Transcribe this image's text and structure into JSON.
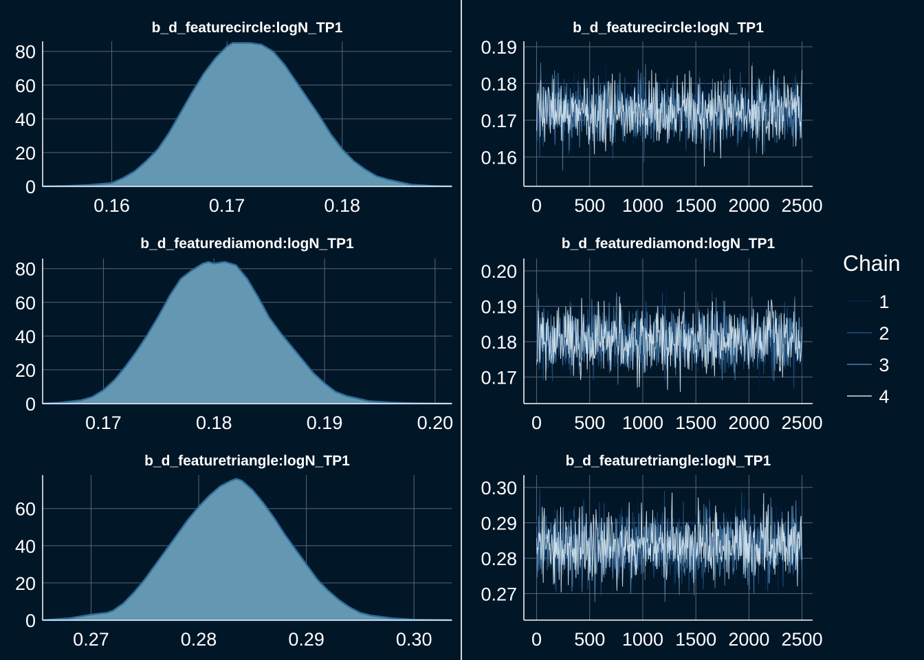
{
  "colors": {
    "background": "#011627",
    "grid": "#5b6776",
    "axis": "#ffffff",
    "text": "#ffffff",
    "density_fill": "#6497b1",
    "density_line": "#2f6c9a",
    "chains": [
      "#03254c",
      "#1f4e80",
      "#4f7fa8",
      "#d1e1ec"
    ]
  },
  "legend": {
    "title": "Chain",
    "items": [
      "1",
      "2",
      "3",
      "4"
    ]
  },
  "chart_data": [
    {
      "type": "area",
      "title": "b_d_featurecircle:logN_TP1",
      "xlim": [
        0.154,
        0.1895
      ],
      "ylim": [
        0,
        86
      ],
      "xticks": [
        0.16,
        0.17,
        0.18
      ],
      "xtick_labels": [
        "0.16",
        "0.17",
        "0.18"
      ],
      "yticks": [
        0,
        20,
        40,
        60,
        80
      ],
      "ytick_labels": [
        "0",
        "20",
        "40",
        "60",
        "80"
      ],
      "x": [
        0.154,
        0.156,
        0.158,
        0.16,
        0.161,
        0.162,
        0.163,
        0.164,
        0.165,
        0.166,
        0.167,
        0.168,
        0.169,
        0.17,
        0.1705,
        0.171,
        0.172,
        0.173,
        0.174,
        0.175,
        0.176,
        0.177,
        0.178,
        0.179,
        0.18,
        0.181,
        0.182,
        0.183,
        0.184,
        0.185,
        0.186,
        0.188,
        0.1895
      ],
      "y": [
        0,
        0.2,
        0.8,
        2,
        5,
        9,
        15,
        22,
        32,
        44,
        56,
        67,
        76,
        83,
        85,
        85,
        85,
        84,
        80,
        72,
        62,
        52,
        42,
        31,
        22,
        15,
        10,
        6,
        4,
        2.5,
        1,
        0.2,
        0
      ]
    },
    {
      "type": "line",
      "title": "b_d_featurecircle:logN_TP1",
      "xlim": [
        -120,
        2600
      ],
      "ylim": [
        0.152,
        0.1915
      ],
      "xticks": [
        0,
        500,
        1000,
        1500,
        2000,
        2500
      ],
      "xtick_labels": [
        "0",
        "500",
        "1000",
        "1500",
        "2000",
        "2500"
      ],
      "yticks": [
        0.16,
        0.17,
        0.18,
        0.19
      ],
      "ytick_labels": [
        "0.16",
        "0.17",
        "0.18",
        "0.19"
      ],
      "iterations": [
        0,
        2500
      ],
      "center": 0.1725,
      "sd": 0.0046,
      "seed": 11
    },
    {
      "type": "area",
      "title": "b_d_featurediamond:logN_TP1",
      "xlim": [
        0.1645,
        0.2015
      ],
      "ylim": [
        0,
        86
      ],
      "xticks": [
        0.17,
        0.18,
        0.19,
        0.2
      ],
      "xtick_labels": [
        "0.17",
        "0.18",
        "0.19",
        "0.20"
      ],
      "yticks": [
        0,
        20,
        40,
        60,
        80
      ],
      "ytick_labels": [
        "0",
        "20",
        "40",
        "60",
        "80"
      ],
      "x": [
        0.1645,
        0.166,
        0.168,
        0.169,
        0.17,
        0.171,
        0.172,
        0.173,
        0.174,
        0.175,
        0.176,
        0.177,
        0.178,
        0.179,
        0.1795,
        0.18,
        0.181,
        0.182,
        0.183,
        0.184,
        0.185,
        0.186,
        0.187,
        0.188,
        0.189,
        0.19,
        0.191,
        0.192,
        0.193,
        0.194,
        0.196,
        0.198,
        0.2015
      ],
      "y": [
        0,
        0.5,
        2,
        4,
        8,
        14,
        22,
        31,
        41,
        52,
        64,
        74,
        79,
        83,
        84,
        83,
        84,
        82,
        74,
        63,
        51,
        42,
        34,
        26,
        18,
        12,
        7,
        4.5,
        3,
        1.5,
        0.6,
        0.2,
        0
      ]
    },
    {
      "type": "line",
      "title": "b_d_featurediamond:logN_TP1",
      "xlim": [
        -120,
        2600
      ],
      "ylim": [
        0.1625,
        0.2035
      ],
      "xticks": [
        0,
        500,
        1000,
        1500,
        2000,
        2500
      ],
      "xtick_labels": [
        "0",
        "500",
        "1000",
        "1500",
        "2000",
        "2500"
      ],
      "yticks": [
        0.17,
        0.18,
        0.19,
        0.2
      ],
      "ytick_labels": [
        "0.17",
        "0.18",
        "0.19",
        "0.20"
      ],
      "iterations": [
        0,
        2500
      ],
      "center": 0.1805,
      "sd": 0.0047,
      "seed": 23
    },
    {
      "type": "area",
      "title": "b_d_featuretriangle:logN_TP1",
      "xlim": [
        0.2655,
        0.3035
      ],
      "ylim": [
        0,
        78
      ],
      "xticks": [
        0.27,
        0.28,
        0.29,
        0.3
      ],
      "xtick_labels": [
        "0.27",
        "0.28",
        "0.29",
        "0.30"
      ],
      "yticks": [
        0,
        20,
        40,
        60
      ],
      "ytick_labels": [
        "0",
        "20",
        "40",
        "60"
      ],
      "x": [
        0.2655,
        0.268,
        0.27,
        0.2715,
        0.272,
        0.273,
        0.274,
        0.275,
        0.276,
        0.277,
        0.278,
        0.279,
        0.28,
        0.281,
        0.282,
        0.283,
        0.2835,
        0.284,
        0.285,
        0.286,
        0.287,
        0.288,
        0.289,
        0.29,
        0.291,
        0.292,
        0.293,
        0.294,
        0.295,
        0.296,
        0.298,
        0.3,
        0.3035
      ],
      "y": [
        0,
        1,
        3,
        4,
        5,
        9,
        15,
        22,
        30,
        38,
        46,
        54,
        61,
        67,
        72,
        75,
        76,
        75,
        70,
        63,
        55,
        46,
        38,
        30,
        22,
        16,
        11,
        7,
        4,
        2.5,
        1,
        0.3,
        0
      ]
    },
    {
      "type": "line",
      "title": "b_d_featuretriangle:logN_TP1",
      "xlim": [
        -120,
        2600
      ],
      "ylim": [
        0.2625,
        0.3035
      ],
      "xticks": [
        0,
        500,
        1000,
        1500,
        2000,
        2500
      ],
      "xtick_labels": [
        "0",
        "500",
        "1000",
        "1500",
        "2000",
        "2500"
      ],
      "yticks": [
        0.27,
        0.28,
        0.29,
        0.3
      ],
      "ytick_labels": [
        "0.27",
        "0.28",
        "0.29",
        "0.30"
      ],
      "iterations": [
        0,
        2500
      ],
      "center": 0.2835,
      "sd": 0.0052,
      "seed": 37
    }
  ]
}
